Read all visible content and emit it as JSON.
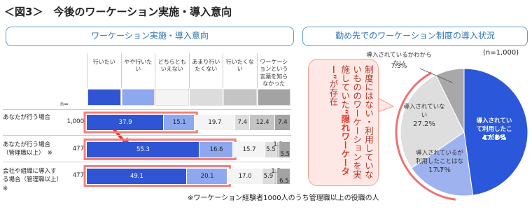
{
  "title": "＜図3＞　今後のワーケーション実施・導入意向",
  "chart_data": [
    {
      "type": "bar",
      "orientation": "horizontal",
      "stacked": true,
      "title": "ワーケーション実施・導入意向",
      "n_label": "n=",
      "categories": [
        "あなたが行う場合",
        "あなたが行う場合（管理職以上）　※",
        "会社や組織に導入する場合（管理職以上）※"
      ],
      "n": [
        {
          "value": 1000,
          "label": "1,000"
        },
        477,
        477
      ],
      "xlim": [
        0,
        100
      ],
      "series": [
        {
          "name": "行いたい",
          "color": "#2f55d4",
          "values": [
            37.9,
            55.3,
            49.1
          ]
        },
        {
          "name": "やや行いたい",
          "color": "#8ea8ef",
          "values": [
            15.1,
            16.6,
            20.1
          ]
        },
        {
          "name": "どちらともいえない",
          "color": "#f4f4f4",
          "values": [
            19.7,
            15.7,
            17.0
          ],
          "value_labels": [
            "19.7",
            "15.7",
            "17.0"
          ]
        },
        {
          "name": "あまり行いたくない",
          "color": "#dcdcdc",
          "values": [
            7.4,
            5.5,
            5.9
          ]
        },
        {
          "name": "行いたくない",
          "color": "#c4c4c4",
          "values": [
            12.4,
            1.5,
            1.5
          ]
        },
        {
          "name": "ワーケーションという言葉を知らなかった",
          "color": "#a3a3a3",
          "values": [
            7.4,
            5.5,
            6.5
          ]
        }
      ],
      "note": "※ワーケーション経験者1000人のうち管理職以上の役職の人"
    },
    {
      "type": "pie",
      "title": "勤め先でのワーケーション制度の導入状況",
      "n_label": "(n=1,000)",
      "categories": [
        "導入されていて利用したことがある",
        "導入されているが利用したことはない",
        "導入されていない",
        "導入されているかわからない"
      ],
      "values": [
        47.8,
        17.7,
        27.2,
        7.3
      ],
      "value_labels": [
        "47.8%",
        "17.7%",
        "27.2%",
        "7.3%"
      ],
      "colors": [
        "#2b58da",
        "#9db2ef",
        "#dedede",
        "#a8a8a8"
      ],
      "annotation": [
        "制度にはない・利用していないもののワーケーションを実施していた",
        "“隠れワーケーター”",
        "が存在"
      ]
    }
  ]
}
